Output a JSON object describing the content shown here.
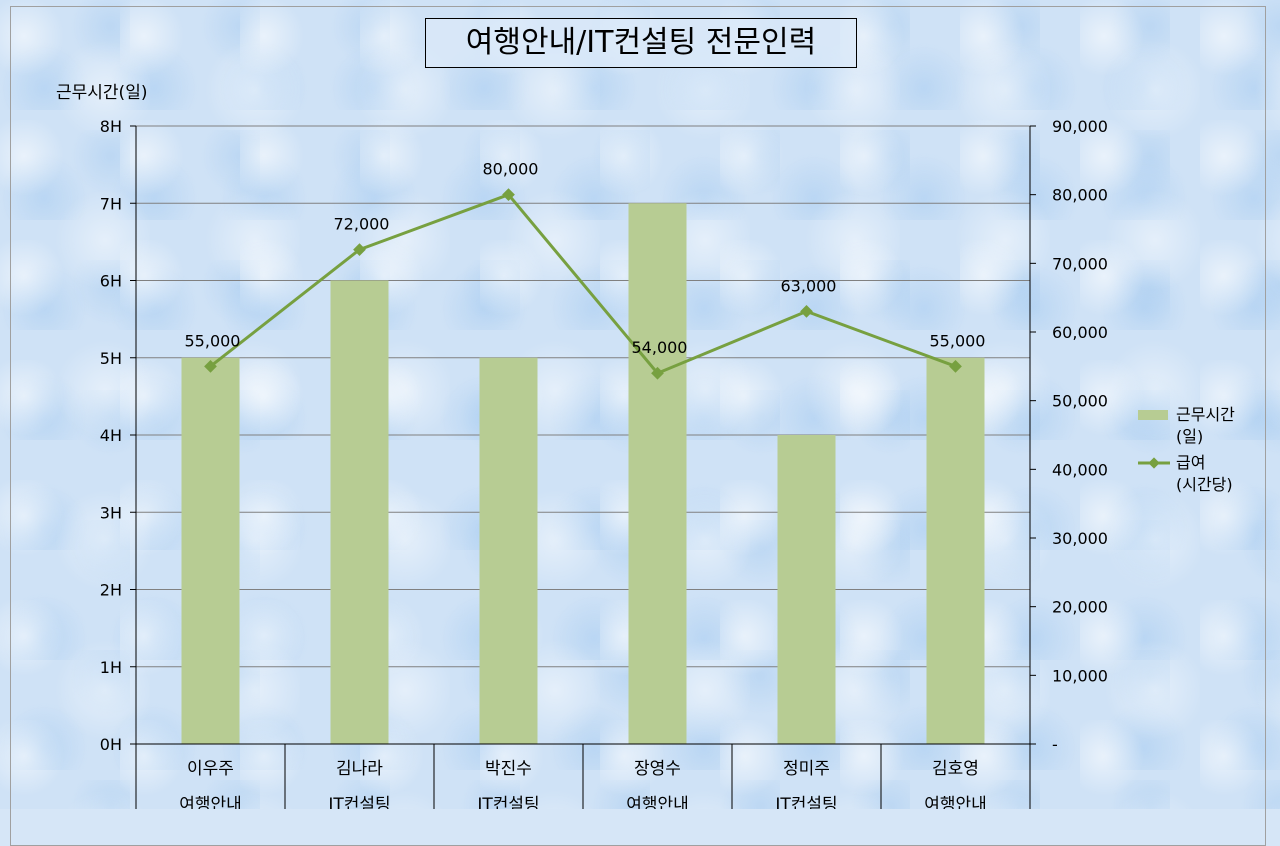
{
  "chart_data": {
    "type": "bar",
    "title": "여행안내/IT컨설팅 전문인력",
    "ylabel": "근무시간(일)",
    "categories": [
      "이우주",
      "김나라",
      "박진수",
      "장영수",
      "정미주",
      "김호영"
    ],
    "subcategories": [
      "여행안내",
      "IT컨설팅",
      "IT컨설팅",
      "여행안내",
      "IT컨설팅",
      "여행안내"
    ],
    "ylim": [
      0,
      8
    ],
    "y_ticks": [
      "0H",
      "1H",
      "2H",
      "3H",
      "4H",
      "5H",
      "6H",
      "7H",
      "8H"
    ],
    "y2lim": [
      0,
      90000
    ],
    "y2_ticks": [
      "-",
      "10,000",
      "20,000",
      "30,000",
      "40,000",
      "50,000",
      "60,000",
      "70,000",
      "80,000",
      "90,000"
    ],
    "grid": true,
    "legend_position": "right",
    "series": [
      {
        "name": "근무시간(일)",
        "legend_lines": [
          "근무시간",
          "(일)"
        ],
        "type": "bar",
        "axis": "left",
        "color": "#b7cc93",
        "values": [
          5,
          6,
          5,
          7,
          4,
          5
        ]
      },
      {
        "name": "급여(시간당)",
        "legend_lines": [
          "급여",
          "(시간당)"
        ],
        "type": "line",
        "axis": "right",
        "color": "#77a040",
        "values": [
          55000,
          72000,
          80000,
          54000,
          63000,
          55000
        ],
        "data_labels": [
          "55,000",
          "72,000",
          "80,000",
          "54,000",
          "63,000",
          "55,000"
        ]
      }
    ]
  }
}
